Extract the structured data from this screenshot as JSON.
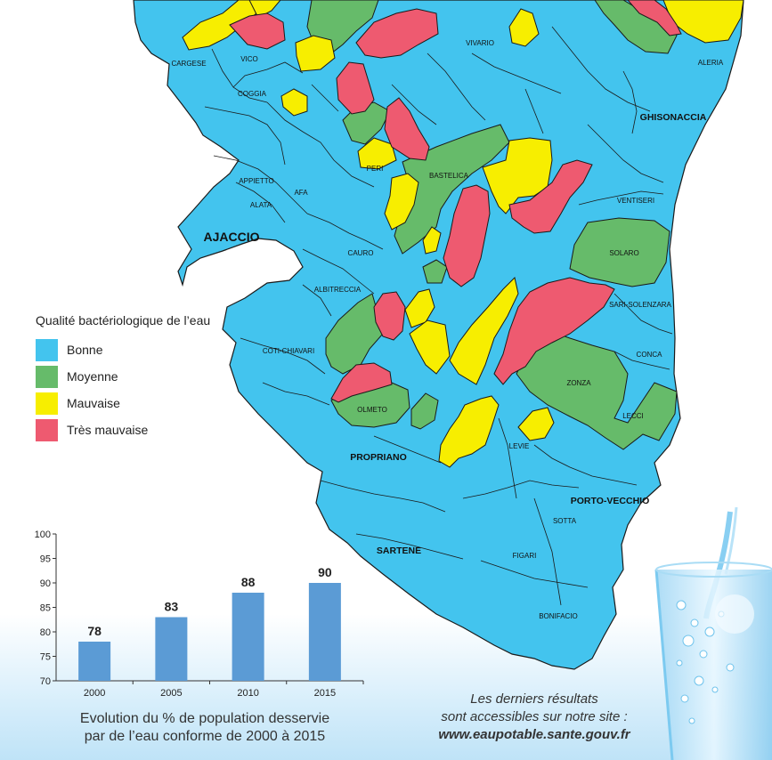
{
  "colors": {
    "bonne": "#43c4ee",
    "moyenne": "#66bb6a",
    "mauvaise": "#f7ee00",
    "tres_mauvaise": "#ee5a70",
    "bar": "#5b9bd5"
  },
  "map": {
    "towns": [
      "CARGESE",
      "VICO",
      "COGGIA",
      "VIVARIO",
      "ALERIA",
      "GHISONACCIA",
      "PERI",
      "BASTELICA",
      "APPIETTO",
      "AFA",
      "ALATA",
      "AJACCIO",
      "VENTISERI",
      "CAURO",
      "SOLARO",
      "ALBITRECCIA",
      "SARI-SOLENZARA",
      "COTI-CHIAVARI",
      "CONCA",
      "ZONZA",
      "OLMETO",
      "LECCI",
      "PROPRIANO",
      "LEVIE",
      "PORTO-VECCHIO",
      "SOTTA",
      "SARTENE",
      "FIGARI",
      "BONIFACIO"
    ]
  },
  "legend": {
    "title": "Qualité bactériologique de l’eau",
    "items": [
      "Bonne",
      "Moyenne",
      "Mauvaise",
      "Très mauvaise"
    ]
  },
  "chart_data": {
    "type": "bar",
    "categories": [
      "2000",
      "2005",
      "2010",
      "2015"
    ],
    "values": [
      78,
      83,
      88,
      90
    ],
    "ylim": [
      70,
      100
    ],
    "yticks": [
      "70",
      "75",
      "80",
      "85",
      "90",
      "95",
      "100"
    ],
    "title": "",
    "xlabel": "",
    "ylabel": ""
  },
  "caption": {
    "line1": "Evolution du % de population desservie",
    "line2": "par de l’eau conforme de 2000 à 2015"
  },
  "footer": {
    "line1": "Les derniers résultats",
    "line2": "sont accessibles sur notre site :",
    "url": "www.eaupotable.sante.gouv.fr"
  }
}
